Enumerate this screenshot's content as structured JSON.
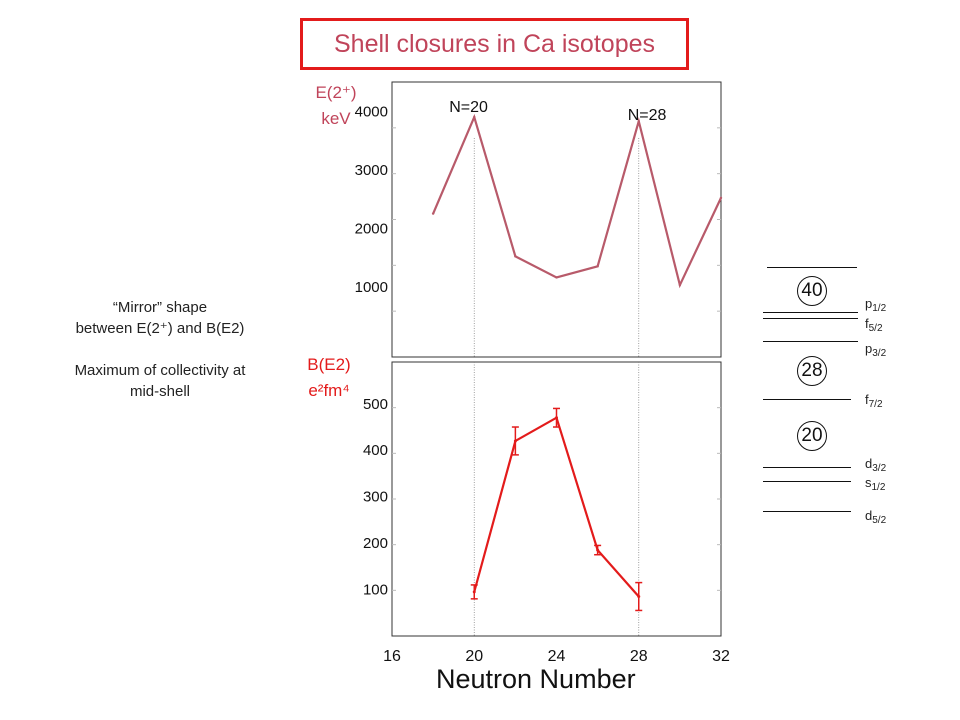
{
  "title": "Shell closures in Ca isotopes",
  "notes": {
    "line1": "“Mirror” shape",
    "line2": "between E(2⁺) and B(E2)",
    "line3": "Maximum of collectivity at",
    "line4": "mid-shell"
  },
  "xlabel": "Neutron Number",
  "chart_data": [
    {
      "type": "line",
      "ylabel_line1": "E(2⁺)",
      "ylabel_line2": "keV",
      "x": [
        18,
        20,
        22,
        24,
        26,
        28,
        30,
        32
      ],
      "y": [
        2250,
        3900,
        1520,
        1160,
        1350,
        3830,
        1030,
        2520
      ],
      "xlim": [
        16,
        32
      ],
      "ylim": [
        -200,
        4500
      ],
      "yticks": [
        1000,
        2000,
        3000,
        4000
      ],
      "xticks": [
        16,
        20,
        24,
        28,
        32
      ],
      "annotations": [
        {
          "x": 20,
          "label": "N=20"
        },
        {
          "x": 28,
          "label": "N=28"
        }
      ],
      "color": "#b85a6a"
    },
    {
      "type": "line",
      "ylabel_line1": "B(E2)",
      "ylabel_line2": "e²fm⁴",
      "x": [
        20,
        22,
        24,
        26,
        28
      ],
      "y": [
        95,
        420,
        470,
        185,
        85
      ],
      "yerr": [
        15,
        30,
        20,
        10,
        30
      ],
      "xlim": [
        16,
        32
      ],
      "ylim": [
        0,
        590
      ],
      "yticks": [
        100,
        200,
        300,
        400,
        500
      ],
      "color": "#e31b1b"
    }
  ],
  "shell_diagram": {
    "magic_numbers": [
      "40",
      "28",
      "20"
    ],
    "levels": [
      "p1/2",
      "f5/2",
      "p3/2",
      "f7/2",
      "d3/2",
      "s1/2",
      "d5/2"
    ],
    "labels": [
      {
        "letter": "p",
        "sub": "1/2"
      },
      {
        "letter": "f",
        "sub": "5/2"
      },
      {
        "letter": "p",
        "sub": "3/2"
      },
      {
        "letter": "f",
        "sub": "7/2"
      },
      {
        "letter": "d",
        "sub": "3/2"
      },
      {
        "letter": "s",
        "sub": "1/2"
      },
      {
        "letter": "d",
        "sub": "5/2"
      }
    ]
  }
}
